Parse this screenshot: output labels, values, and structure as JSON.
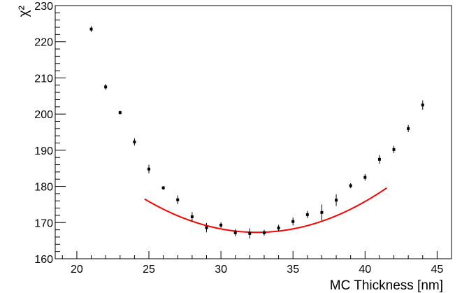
{
  "chart_data": {
    "type": "scatter",
    "xlabel": "MC Thickness [nm]",
    "ylabel": "χ²",
    "xlim": [
      18.5,
      46
    ],
    "ylim": [
      160,
      230
    ],
    "xticks": [
      20,
      25,
      30,
      35,
      40,
      45
    ],
    "yticks": [
      160,
      170,
      180,
      190,
      200,
      210,
      220,
      230
    ],
    "grid": false,
    "legend": "none",
    "colors": {
      "points": "#000000",
      "fit": "#ff0000"
    },
    "series": [
      {
        "points": [
          {
            "x": 21,
            "y": 223.5,
            "err": 0.8
          },
          {
            "x": 22,
            "y": 207.5,
            "err": 0.8
          },
          {
            "x": 23,
            "y": 200.4,
            "err": 0.5
          },
          {
            "x": 24,
            "y": 192.3,
            "err": 1.0
          },
          {
            "x": 25,
            "y": 184.8,
            "err": 1.2
          },
          {
            "x": 26,
            "y": 179.6,
            "err": 0.5
          },
          {
            "x": 27,
            "y": 176.3,
            "err": 1.2
          },
          {
            "x": 28,
            "y": 171.6,
            "err": 1.3
          },
          {
            "x": 29,
            "y": 168.6,
            "err": 1.3
          },
          {
            "x": 30,
            "y": 169.3,
            "err": 0.8
          },
          {
            "x": 31,
            "y": 167.2,
            "err": 1.0
          },
          {
            "x": 32,
            "y": 167.0,
            "err": 1.4
          },
          {
            "x": 33,
            "y": 167.2,
            "err": 0.8
          },
          {
            "x": 34,
            "y": 168.5,
            "err": 0.9
          },
          {
            "x": 35,
            "y": 170.3,
            "err": 1.1
          },
          {
            "x": 36,
            "y": 172.2,
            "err": 1.0
          },
          {
            "x": 37,
            "y": 172.8,
            "err": 2.2
          },
          {
            "x": 38,
            "y": 176.2,
            "err": 1.6
          },
          {
            "x": 39,
            "y": 180.2,
            "err": 0.7
          },
          {
            "x": 40,
            "y": 182.5,
            "err": 0.9
          },
          {
            "x": 41,
            "y": 187.5,
            "err": 1.2
          },
          {
            "x": 42,
            "y": 190.2,
            "err": 1.0
          },
          {
            "x": 43,
            "y": 196.0,
            "err": 1.0
          },
          {
            "x": 44,
            "y": 202.5,
            "err": 1.3
          }
        ]
      }
    ],
    "fit": {
      "type": "parabola",
      "x_range": [
        24.7,
        41.5
      ],
      "a": 0.1515,
      "x0": 32.5,
      "y0": 167.3
    }
  }
}
